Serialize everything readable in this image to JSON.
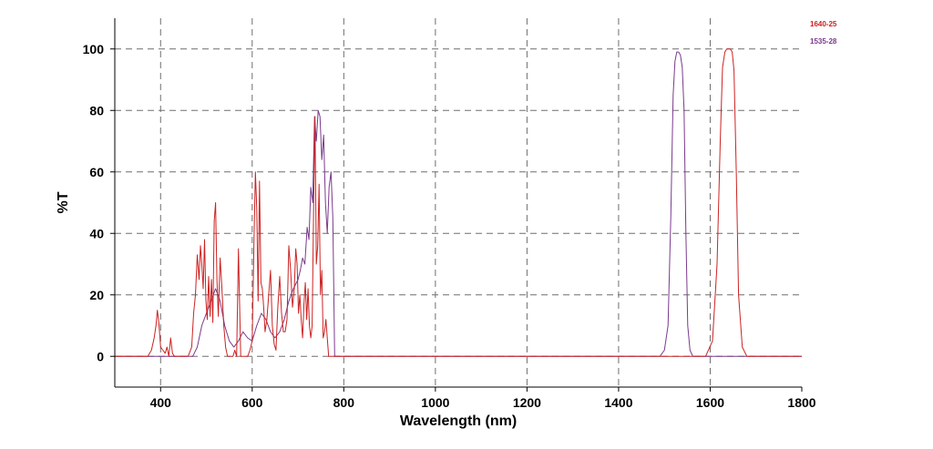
{
  "chart_data": {
    "type": "line",
    "title": "",
    "xlabel": "Wavelength (nm)",
    "ylabel": "%T",
    "xlim": [
      300,
      1800
    ],
    "ylim": [
      -10,
      110
    ],
    "xticks": [
      400,
      600,
      800,
      1000,
      1200,
      1400,
      1600,
      1800
    ],
    "yticks": [
      0,
      20,
      40,
      60,
      80,
      100
    ],
    "grid": true,
    "legend_position": "top-right",
    "series": [
      {
        "name": "1640-25",
        "color": "#cc2222",
        "x": [
          300,
          372,
          380,
          386,
          390,
          393,
          396,
          400,
          405,
          410,
          414,
          418,
          422,
          426,
          430,
          434,
          440,
          450,
          460,
          468,
          472,
          476,
          480,
          484,
          487,
          490,
          493,
          496,
          499,
          502,
          505,
          508,
          511,
          514,
          517,
          520,
          523,
          526,
          530,
          534,
          538,
          542,
          546,
          550,
          554,
          558,
          562,
          566,
          570,
          575,
          580,
          585,
          590,
          595,
          600,
          604,
          607,
          610,
          613,
          616,
          619,
          622,
          625,
          628,
          632,
          636,
          640,
          644,
          648,
          652,
          656,
          660,
          664,
          668,
          672,
          676,
          680,
          684,
          688,
          692,
          695,
          698,
          701,
          704,
          707,
          710,
          713,
          716,
          719,
          722,
          725,
          728,
          731,
          734,
          737,
          740,
          743,
          746,
          749,
          752,
          755,
          758,
          761,
          764,
          767,
          770,
          775,
          780,
          800,
          1000,
          1500,
          1590,
          1605,
          1615,
          1622,
          1627,
          1632,
          1636,
          1640,
          1644,
          1648,
          1652,
          1657,
          1662,
          1670,
          1680,
          1800
        ],
        "y": [
          0,
          0,
          2,
          6,
          10,
          15,
          11,
          3,
          2,
          1,
          3,
          0,
          6,
          1,
          0,
          0,
          0,
          0,
          0,
          3,
          14,
          20,
          33,
          25,
          36,
          30,
          22,
          38,
          18,
          12,
          26,
          13,
          25,
          11,
          44,
          50,
          25,
          13,
          32,
          22,
          10,
          3,
          0,
          0,
          0,
          0,
          2,
          0,
          35,
          0,
          0,
          0,
          0,
          2,
          5,
          38,
          60,
          48,
          18,
          57,
          24,
          22,
          16,
          8,
          12,
          20,
          28,
          10,
          4,
          2,
          16,
          26,
          14,
          8,
          8,
          12,
          36,
          28,
          16,
          22,
          35,
          30,
          14,
          20,
          12,
          6,
          17,
          24,
          12,
          22,
          10,
          6,
          10,
          48,
          78,
          30,
          36,
          56,
          20,
          28,
          6,
          8,
          12,
          6,
          0,
          0,
          0,
          0,
          0,
          0,
          0,
          0,
          5,
          30,
          70,
          94,
          99,
          100,
          100,
          100,
          99,
          93,
          60,
          20,
          3,
          0,
          0
        ]
      },
      {
        "name": "1535-28",
        "color": "#7a3a8c",
        "x": [
          300,
          470,
          480,
          490,
          500,
          510,
          520,
          530,
          540,
          550,
          560,
          570,
          580,
          590,
          600,
          610,
          620,
          630,
          640,
          650,
          660,
          670,
          680,
          690,
          700,
          705,
          710,
          715,
          720,
          724,
          728,
          732,
          736,
          740,
          744,
          748,
          752,
          756,
          760,
          764,
          768,
          772,
          776,
          780,
          800,
          1000,
          1400,
          1490,
          1500,
          1508,
          1514,
          1519,
          1523,
          1527,
          1531,
          1535,
          1539,
          1543,
          1547,
          1551,
          1556,
          1562,
          1570,
          1580,
          1800
        ],
        "y": [
          0,
          0,
          3,
          10,
          14,
          18,
          22,
          18,
          10,
          5,
          3,
          5,
          8,
          6,
          5,
          10,
          14,
          12,
          8,
          6,
          8,
          12,
          18,
          22,
          25,
          28,
          32,
          30,
          42,
          38,
          55,
          50,
          78,
          70,
          80,
          78,
          64,
          72,
          50,
          40,
          55,
          60,
          45,
          0,
          0,
          0,
          0,
          0,
          2,
          10,
          45,
          85,
          96,
          99,
          99,
          98,
          94,
          80,
          40,
          10,
          2,
          0,
          0,
          0,
          0
        ]
      }
    ]
  }
}
